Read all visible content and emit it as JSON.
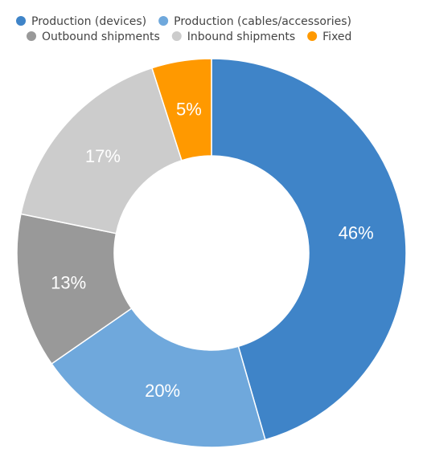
{
  "chart_data": {
    "type": "pie",
    "donut": true,
    "legend_position": "top",
    "categories": [
      "Production (devices)",
      "Production (cables/accessories)",
      "Outbound shipments",
      "Inbound shipments",
      "Fixed"
    ],
    "values": [
      46,
      20,
      13,
      17,
      5
    ],
    "labels": [
      "46%",
      "20%",
      "13%",
      "17%",
      "5%"
    ],
    "colors": [
      "#3f84c8",
      "#6fa8dc",
      "#999999",
      "#cccccc",
      "#ff9900"
    ]
  }
}
